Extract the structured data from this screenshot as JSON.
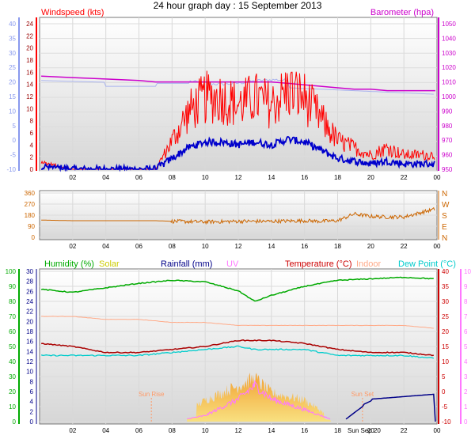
{
  "title": "24 hour graph day : 15 September 2013",
  "colors": {
    "windspeed": "#ff0000",
    "windavg": "#0000cc",
    "barometer": "#cc00cc",
    "gust_bg": "#aab4ee",
    "direction": "#cc6600",
    "humidity": "#00aa00",
    "solar": "#cccc00",
    "rainfall": "#000088",
    "uv": "#ff77ff",
    "temperature": "#990000",
    "indoor": "#ffaa88",
    "dewpoint": "#00cccc",
    "solar_fill": "#f4b840"
  },
  "x_ticks": [
    "02",
    "04",
    "06",
    "08",
    "10",
    "12",
    "14",
    "16",
    "18",
    "20",
    "22",
    "00"
  ],
  "panel1": {
    "label_left": "Windspeed (kts)",
    "label_right": "Barometer (hpa)",
    "axis_left_blue": [
      "40",
      "35",
      "30",
      "25",
      "20",
      "15",
      "10",
      "5",
      "0",
      "-5",
      "-10"
    ],
    "axis_left_red": [
      "24",
      "22",
      "20",
      "18",
      "16",
      "14",
      "12",
      "10",
      "8",
      "6",
      "4",
      "2",
      "0"
    ],
    "axis_right": [
      "1050",
      "1040",
      "1030",
      "1020",
      "1010",
      "1000",
      "990",
      "980",
      "970",
      "960",
      "950"
    ]
  },
  "panel2": {
    "axis_left": [
      "360",
      "270",
      "180",
      "90",
      "0"
    ],
    "axis_right": [
      "N",
      "W",
      "S",
      "E",
      "N"
    ]
  },
  "panel3": {
    "labels": {
      "humidity": "Humidity (%)",
      "solar": "Solar",
      "rainfall": "Rainfall (mm)",
      "uv": "UV",
      "temperature": "Temperature (°C)",
      "indoor": "Indoor",
      "dewpoint": "Dew Point (°C)"
    },
    "axis_humidity": [
      "100",
      "90",
      "80",
      "70",
      "60",
      "50",
      "40",
      "30",
      "20",
      "10",
      "0"
    ],
    "axis_rain": [
      "30",
      "28",
      "26",
      "24",
      "22",
      "20",
      "18",
      "16",
      "14",
      "12",
      "10",
      "8",
      "6",
      "4",
      "2",
      "0"
    ],
    "axis_temp": [
      "40",
      "35",
      "30",
      "25",
      "20",
      "15",
      "10",
      "5",
      "0",
      "-5",
      "-10"
    ],
    "axis_uv": [
      "10",
      "9",
      "8",
      "7",
      "6",
      "5",
      "4",
      "3",
      "2",
      "1",
      "0"
    ],
    "sunrise_label": "Sun Rise",
    "sunset_label": "Sun Set",
    "date_label": "Sun Sep 20"
  },
  "chart_data": [
    {
      "type": "line",
      "title": "24 hour graph day : 15 September 2013",
      "x": [
        "01",
        "02",
        "04",
        "06",
        "07",
        "08",
        "09",
        "10",
        "11",
        "12",
        "13",
        "14",
        "15",
        "16",
        "17",
        "18",
        "19",
        "20",
        "21",
        "22",
        "23",
        "00"
      ],
      "series": [
        {
          "name": "Windspeed (kts)",
          "values": [
            1,
            0,
            0,
            0,
            0,
            4,
            8,
            10,
            10,
            9,
            10,
            9,
            11,
            10,
            7,
            4,
            3,
            2,
            3,
            2,
            2,
            2
          ]
        },
        {
          "name": "Barometer (hpa)",
          "values": [
            1010,
            1009,
            1008,
            1007,
            1006,
            1006,
            1006,
            1006,
            1006,
            1006,
            1006,
            1006,
            1005,
            1004,
            1003,
            1002,
            1001,
            1001,
            1000,
            1000,
            1000,
            1000
          ]
        }
      ],
      "ylim_left": [
        0,
        24
      ],
      "ylim_right": [
        950,
        1050
      ]
    },
    {
      "type": "line",
      "x": [
        "01",
        "02",
        "04",
        "06",
        "07",
        "08",
        "10",
        "12",
        "14",
        "16",
        "17",
        "18",
        "19",
        "20",
        "21",
        "22",
        "23",
        "00"
      ],
      "series": [
        {
          "name": "Wind direction",
          "values": [
            140,
            135,
            135,
            135,
            135,
            130,
            125,
            130,
            130,
            135,
            130,
            135,
            190,
            170,
            165,
            165,
            200,
            230
          ]
        }
      ],
      "ylim": [
        0,
        360
      ]
    },
    {
      "type": "line",
      "x": [
        "01",
        "02",
        "04",
        "06",
        "08",
        "10",
        "12",
        "13",
        "14",
        "16",
        "18",
        "20",
        "22",
        "00"
      ],
      "series": [
        {
          "name": "Humidity (%)",
          "values": [
            88,
            86,
            89,
            92,
            94,
            93,
            87,
            80,
            84,
            90,
            94,
            95,
            96,
            95
          ]
        },
        {
          "name": "Temperature (°C)",
          "values": [
            16,
            15,
            13,
            13,
            14,
            15,
            17,
            17,
            17,
            16,
            14,
            13,
            13,
            12
          ]
        },
        {
          "name": "Dew Point (°C)",
          "values": [
            12,
            12,
            12,
            12,
            13,
            14,
            15,
            14,
            14,
            14,
            12,
            12,
            12,
            11
          ]
        },
        {
          "name": "Indoor",
          "values": [
            25,
            25,
            24,
            24,
            23,
            23,
            22,
            22,
            22,
            22,
            22,
            22,
            22,
            21
          ]
        },
        {
          "name": "Rainfall (mm)",
          "values": [
            0,
            0,
            0,
            0,
            0,
            0,
            0,
            0,
            0,
            0,
            0,
            4,
            5,
            5.5
          ]
        },
        {
          "name": "Solar",
          "values": [
            0,
            0,
            0,
            0,
            0,
            15,
            25,
            30,
            20,
            15,
            0,
            0,
            0,
            0
          ]
        },
        {
          "name": "UV",
          "values": [
            0,
            0,
            0,
            0,
            0,
            0.4,
            1.5,
            2.4,
            1.5,
            0.8,
            0,
            0,
            0,
            0
          ]
        }
      ],
      "ylim_humidity": [
        0,
        100
      ],
      "ylim_rain": [
        0,
        30
      ],
      "ylim_temp": [
        -10,
        40
      ],
      "ylim_uv": [
        0,
        10
      ]
    }
  ]
}
